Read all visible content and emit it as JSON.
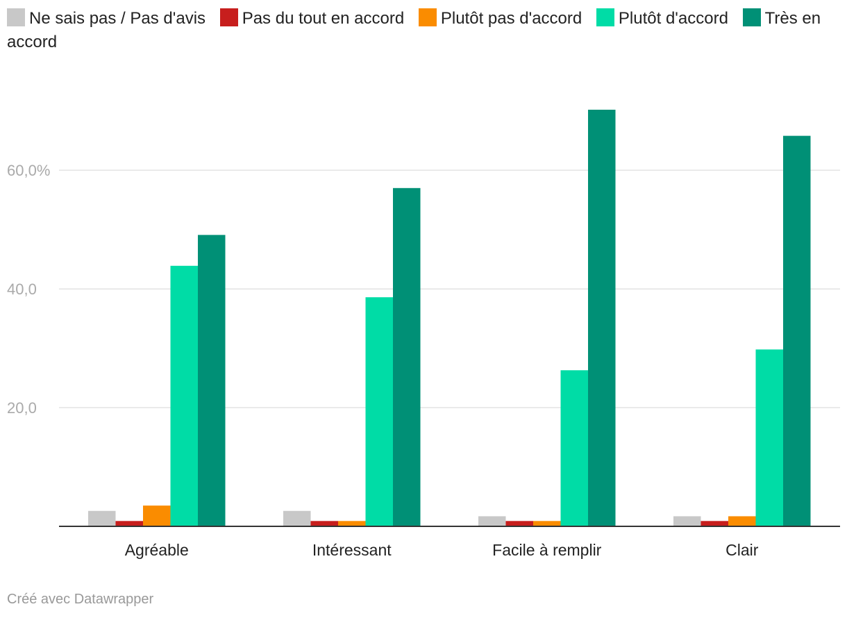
{
  "chart_data": {
    "type": "bar",
    "title": "",
    "xlabel": "",
    "ylabel": "",
    "categories": [
      "Agréable",
      "Intéressant",
      "Facile à remplir",
      "Clair"
    ],
    "series": [
      {
        "name": "Ne sais pas / Pas d'avis",
        "color": "#c8c8c8",
        "values": [
          2.6,
          2.6,
          1.7,
          1.7
        ]
      },
      {
        "name": "Pas du tout en accord",
        "color": "#c71e1d",
        "values": [
          0.9,
          0.9,
          0.9,
          0.9
        ]
      },
      {
        "name": "Plutôt pas d'accord",
        "color": "#fa8c00",
        "values": [
          3.5,
          0.9,
          0.9,
          1.7
        ]
      },
      {
        "name": "Plutôt d'accord",
        "color": "#00dca6",
        "values": [
          43.9,
          38.6,
          26.3,
          29.8
        ]
      },
      {
        "name": "Très en accord",
        "color": "#009076",
        "values": [
          49.1,
          57.0,
          70.2,
          65.8
        ]
      }
    ],
    "ylim": [
      0,
      70.2
    ],
    "yticks": [
      {
        "value": 20,
        "label": "20,0"
      },
      {
        "value": 40,
        "label": "40,0"
      },
      {
        "value": 60,
        "label": "60,0%"
      }
    ],
    "grid": true,
    "legend_position": "top"
  },
  "footer": {
    "credit": "Créé avec Datawrapper"
  }
}
